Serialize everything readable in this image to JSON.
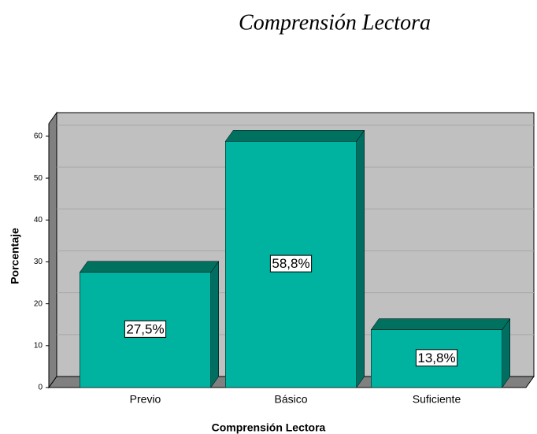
{
  "chart_data": {
    "type": "bar3d",
    "title": "Comprensión Lectora",
    "categories": [
      "Previo",
      "Básico",
      "Suficiente"
    ],
    "values": [
      27.5,
      58.8,
      13.8
    ],
    "value_labels": [
      "27,5%",
      "58,8%",
      "13,8%"
    ],
    "color": "#00b2a0",
    "xlabel": "Comprensión Lectora",
    "ylabel": "Porcentaje",
    "ylim": [
      0,
      63
    ],
    "yticks": [
      0,
      10,
      20,
      30,
      40,
      50,
      60
    ],
    "grid": true
  }
}
